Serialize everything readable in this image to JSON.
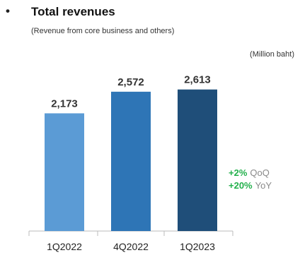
{
  "header": {
    "bullet": "•",
    "title": "Total revenues",
    "subtitle": "(Revenue from core business and others)",
    "unit": "(Million baht)"
  },
  "growth": [
    {
      "value": "+2%",
      "label": "QoQ"
    },
    {
      "value": "+20%",
      "label": "YoY"
    }
  ],
  "colors": {
    "growth_positive": "#22b04b",
    "bars": [
      "#5b9bd5",
      "#2e75b6",
      "#1f4e79"
    ]
  },
  "chart_data": {
    "type": "bar",
    "title": "Total revenues",
    "categories": [
      "1Q2022",
      "4Q2022",
      "1Q2023"
    ],
    "values": [
      2173,
      2572,
      2613
    ],
    "value_labels": [
      "2,173",
      "2,572",
      "2,613"
    ],
    "ylabel": "",
    "ylim": [
      0,
      3000
    ],
    "grid": false,
    "legend": "none"
  }
}
